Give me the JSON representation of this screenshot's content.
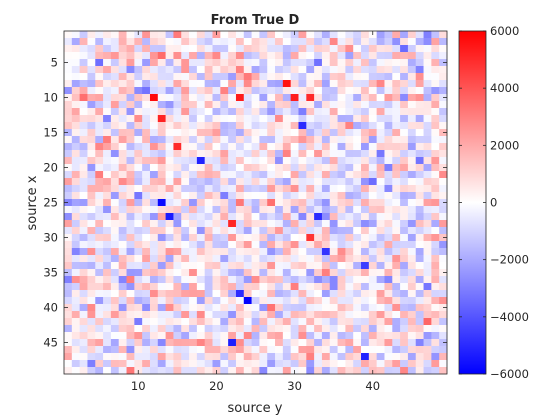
{
  "chart_data": {
    "type": "heatmap",
    "title": "From True D",
    "xlabel": "source y",
    "ylabel": "source x",
    "n_cols": 49,
    "n_rows": 49,
    "xticks": [
      10,
      20,
      30,
      40
    ],
    "yticks": [
      5,
      10,
      15,
      20,
      25,
      30,
      35,
      40,
      45
    ],
    "colorbar": {
      "min": -6000,
      "max": 6000,
      "ticks": [
        6000,
        4000,
        2000,
        0,
        -2000,
        -4000,
        -6000
      ],
      "tick_labels": [
        "6000",
        "4000",
        "2000",
        "0",
        "−2000",
        "−4000",
        "−6000"
      ],
      "colors": {
        "low": "#0000ff",
        "mid": "#ffffff",
        "high": "#ff0000"
      }
    },
    "value_distribution": "random-like noise, roughly uniform within about -6000 to 6000, concentrated near 0",
    "notable_cells": [
      {
        "x": 12,
        "y": 10,
        "value": 5800
      },
      {
        "x": 13,
        "y": 13,
        "value": 5200
      },
      {
        "x": 23,
        "y": 10,
        "value": 5400
      },
      {
        "x": 29,
        "y": 8,
        "value": 5600
      },
      {
        "x": 30,
        "y": 10,
        "value": 5300
      },
      {
        "x": 32,
        "y": 10,
        "value": 5000
      },
      {
        "x": 15,
        "y": 17,
        "value": 5000
      },
      {
        "x": 22,
        "y": 28,
        "value": 5100
      },
      {
        "x": 32,
        "y": 30,
        "value": 4800
      },
      {
        "x": 13,
        "y": 25,
        "value": -5800
      },
      {
        "x": 14,
        "y": 27,
        "value": -5400
      },
      {
        "x": 18,
        "y": 19,
        "value": -5200
      },
      {
        "x": 24,
        "y": 39,
        "value": -5900
      },
      {
        "x": 23,
        "y": 38,
        "value": -5000
      },
      {
        "x": 31,
        "y": 14,
        "value": -5000
      },
      {
        "x": 22,
        "y": 45,
        "value": -5300
      },
      {
        "x": 33,
        "y": 27,
        "value": -5000
      },
      {
        "x": 34,
        "y": 32,
        "value": -4800
      },
      {
        "x": 39,
        "y": 47,
        "value": -5200
      },
      {
        "x": 39,
        "y": 34,
        "value": -4600
      }
    ]
  }
}
